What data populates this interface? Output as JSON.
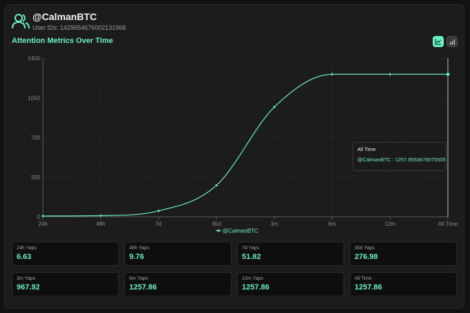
{
  "header": {
    "username": "@CalmanBTC",
    "user_ids": "User IDs: 1429654676002131968"
  },
  "section_title": "Attention Metrics Over Time",
  "toggles": {
    "line_icon": "line-chart-icon",
    "bar_icon": "bar-chart-icon"
  },
  "colors": {
    "accent": "#6ff0c4",
    "background": "#1c1c1c",
    "panel": "#0e0e0e"
  },
  "chart_data": {
    "type": "line",
    "categories": [
      "24h",
      "48h",
      "7d",
      "30d",
      "3m",
      "6m",
      "12m",
      "All Time"
    ],
    "series": [
      {
        "name": "@CalmanBTC",
        "values": [
          6.63,
          9.76,
          51.82,
          276.98,
          967.92,
          1257.86,
          1257.86,
          1257.86
        ]
      }
    ],
    "y_ticks": [
      0,
      350,
      700,
      1050,
      1400
    ],
    "ylim": [
      0,
      1400
    ],
    "grid": true,
    "legend": "bottom"
  },
  "tooltip": {
    "title": "All Time",
    "value": "@CalmanBTC : 1257.8553676975505"
  },
  "stats": [
    {
      "label": "24h Yaps",
      "value": "6.63"
    },
    {
      "label": "48h Yaps",
      "value": "9.76"
    },
    {
      "label": "7d Yaps",
      "value": "51.82"
    },
    {
      "label": "30d Yaps",
      "value": "276.98"
    },
    {
      "label": "3m Yaps",
      "value": "967.92"
    },
    {
      "label": "6m Yaps",
      "value": "1257.86"
    },
    {
      "label": "12m Yaps",
      "value": "1257.86"
    },
    {
      "label": "All Time",
      "value": "1257.86"
    }
  ]
}
